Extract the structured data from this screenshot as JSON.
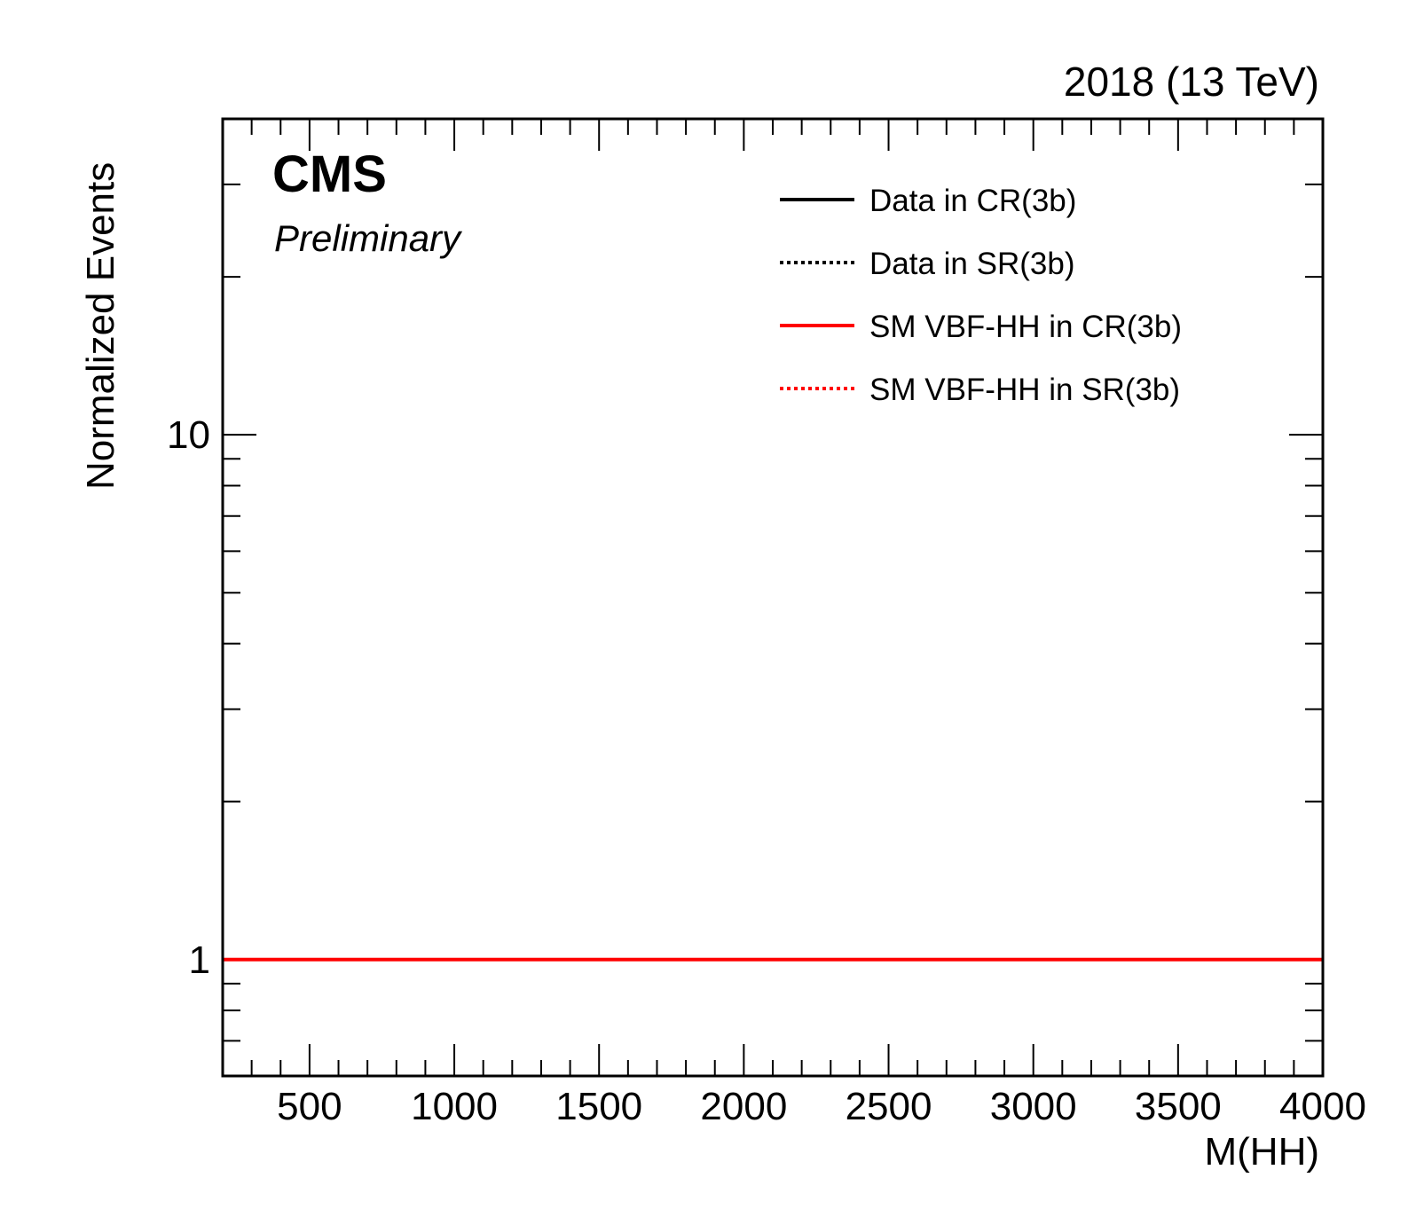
{
  "header": {
    "lumi_text": "2018 (13 TeV)",
    "cms_text": "CMS",
    "extra_text": "Preliminary"
  },
  "colors": {
    "data": "#000000",
    "signal": "#ff0000"
  },
  "chart_data": {
    "type": "line",
    "xlabel": "M(HH)",
    "ylabel": "Normalized Events",
    "xlim": [
      200,
      4000
    ],
    "ylim": [
      0.6,
      40
    ],
    "yscale": "log",
    "x_ticks": [
      500,
      1000,
      1500,
      2000,
      2500,
      3000,
      3500,
      4000
    ],
    "y_ticks": [
      1,
      10
    ],
    "grid": false,
    "legend_position": "top-right",
    "series": [
      {
        "name": "Data in CR(3b)",
        "color": "#000000",
        "style": "solid",
        "x": [],
        "y": []
      },
      {
        "name": "Data in SR(3b)",
        "color": "#000000",
        "style": "dotted",
        "x": [],
        "y": []
      },
      {
        "name": "SM VBF-HH in CR(3b)",
        "color": "#ff0000",
        "style": "solid",
        "x": [
          200,
          4000
        ],
        "y": [
          1,
          1
        ]
      },
      {
        "name": "SM VBF-HH in SR(3b)",
        "color": "#ff0000",
        "style": "dotted",
        "x": [],
        "y": []
      }
    ]
  }
}
